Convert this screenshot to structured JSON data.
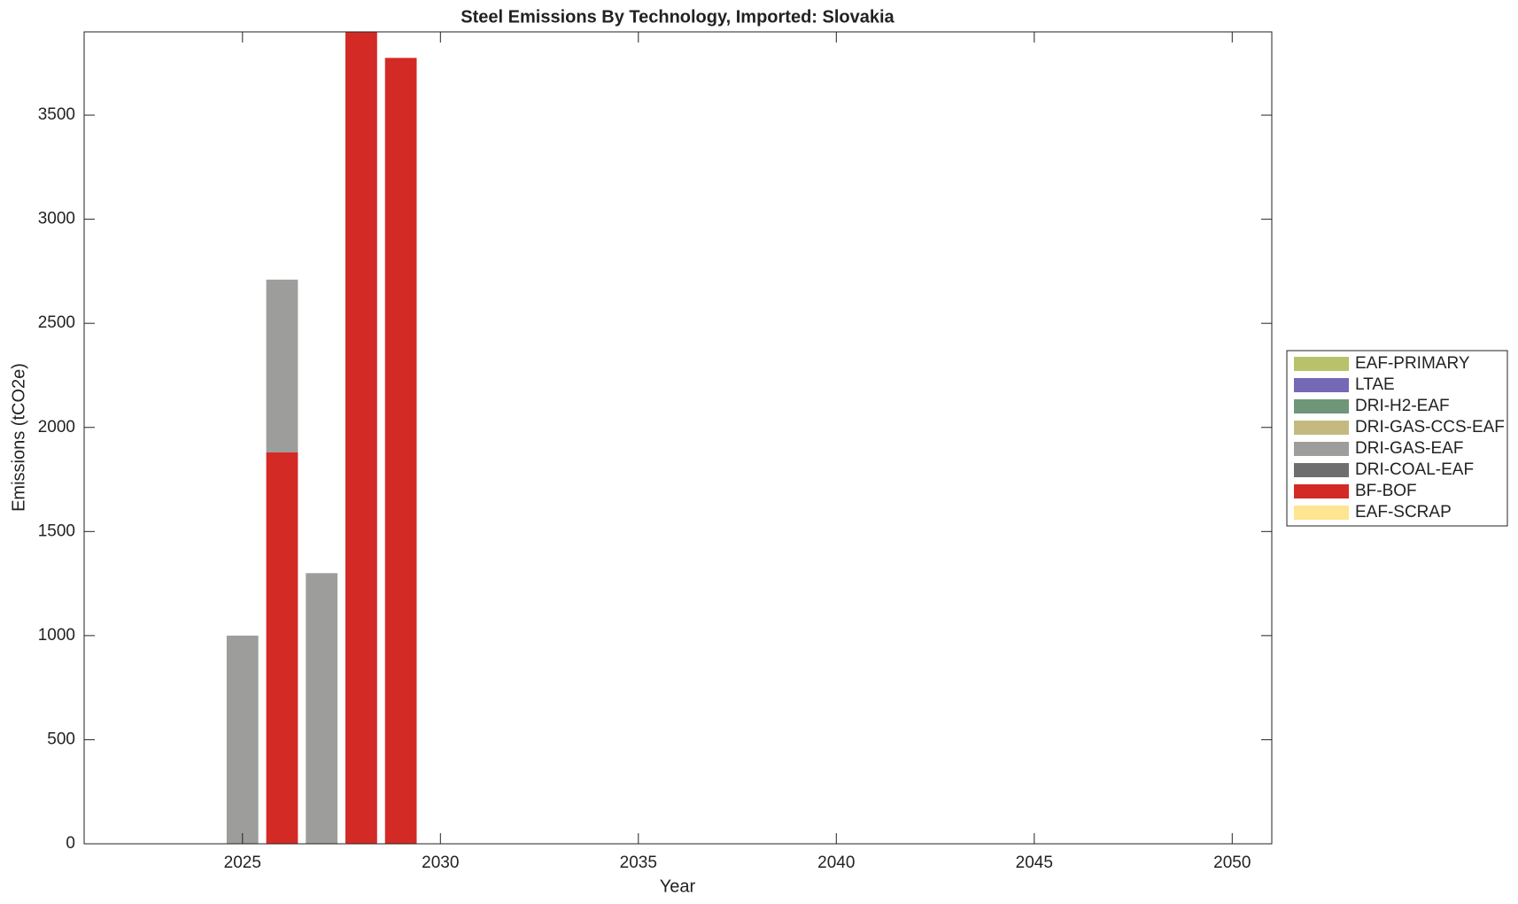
{
  "chart_data": {
    "type": "stacked_bar",
    "title": "Steel Emissions By Technology, Imported: Slovakia",
    "x_label": "Year",
    "y_label": "Emissions (tCO2e)",
    "x": [
      2025,
      2026,
      2027,
      2028,
      2029
    ],
    "series": [
      {
        "name": "EAF-PRIMARY",
        "color": "#b9c16a",
        "values": [
          0,
          0,
          0,
          0,
          0
        ]
      },
      {
        "name": "LTAE",
        "color": "#7469b6",
        "values": [
          0,
          0,
          0,
          0,
          0
        ]
      },
      {
        "name": "DRI-H2-EAF",
        "color": "#6f9679",
        "values": [
          0,
          0,
          0,
          0,
          0
        ]
      },
      {
        "name": "DRI-GAS-CCS-EAF",
        "color": "#c4ba7f",
        "values": [
          0,
          0,
          0,
          0,
          0
        ]
      },
      {
        "name": "DRI-GAS-EAF",
        "color": "#9d9d9b",
        "values": [
          1000,
          830,
          1300,
          0,
          0
        ]
      },
      {
        "name": "DRI-COAL-EAF",
        "color": "#6e6e6e",
        "values": [
          0,
          0,
          0,
          0,
          0
        ]
      },
      {
        "name": "BF-BOF",
        "color": "#d42a25",
        "values": [
          0,
          1880,
          0,
          3900,
          3775
        ]
      },
      {
        "name": "EAF-SCRAP",
        "color": "#fde592",
        "values": [
          0,
          0,
          0,
          0,
          0
        ]
      }
    ],
    "xlim": [
      2021,
      2051
    ],
    "xticks": [
      2025,
      2030,
      2035,
      2040,
      2045,
      2050
    ],
    "ylim": [
      0,
      3900
    ],
    "yticks": [
      0,
      500,
      1000,
      1500,
      2000,
      2500,
      3000,
      3500
    ],
    "legend": "right"
  }
}
